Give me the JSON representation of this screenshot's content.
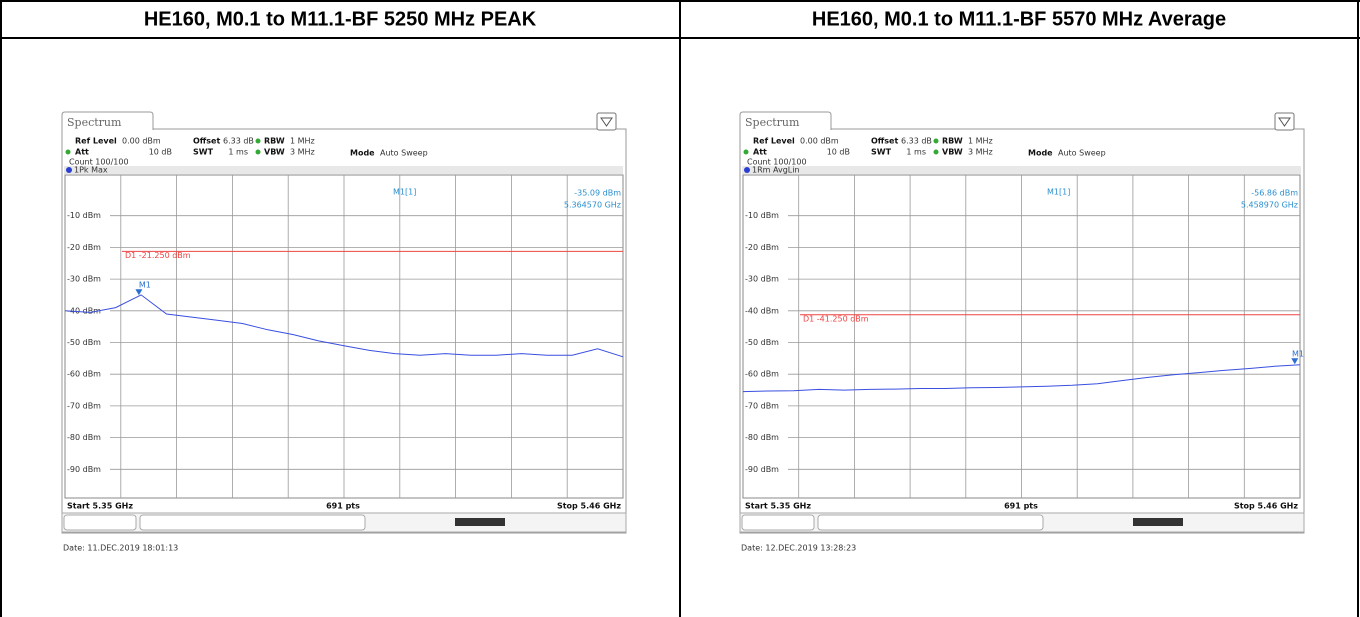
{
  "table": {
    "headers": [
      "HE160, M0.1 to M11.1-BF 5250 MHz PEAK",
      "HE160, M0.1 to M11.1-BF 5570 MHz Average"
    ]
  },
  "panels": [
    {
      "tab": "Spectrum",
      "ref_level_label": "Ref Level",
      "ref_level": "0.00 dBm",
      "offset_label": "Offset",
      "offset": "6.33 dB",
      "rbw_label": "RBW",
      "rbw": "1 MHz",
      "att_label": "Att",
      "att": "10 dB",
      "swt_label": "SWT",
      "swt": "1 ms",
      "vbw_label": "VBW",
      "vbw": "3 MHz",
      "mode_label": "Mode",
      "mode": "Auto Sweep",
      "count": "Count 100/100",
      "trace_label": "1Pk Max",
      "marker": {
        "name": "M1[1]",
        "tag": "M1",
        "x": 5.36457,
        "y": -35.09,
        "level_label": "-35.09 dBm",
        "freq_label": "5.364570 GHz"
      },
      "display_line": {
        "value": -21.25,
        "label": "D1 -21.250 dBm"
      },
      "start": "Start 5.35 GHz",
      "pts": "691 pts",
      "stop": "Stop 5.46 GHz",
      "date": "Date: 11.DEC.2019  18:01:13",
      "xlim": [
        5.35,
        5.46
      ],
      "ylim": [
        -100,
        0
      ],
      "yticks": [
        {
          "value": -10,
          "label": "-10 dBm"
        },
        {
          "value": -20,
          "label": "-20 dBm"
        },
        {
          "value": -30,
          "label": "-30 dBm"
        },
        {
          "value": -40,
          "label": "-40 dBm"
        },
        {
          "value": -50,
          "label": "-50 dBm"
        },
        {
          "value": -60,
          "label": "-60 dBm"
        },
        {
          "value": -70,
          "label": "-70 dBm"
        },
        {
          "value": -80,
          "label": "-80 dBm"
        },
        {
          "value": -90,
          "label": "-90 dBm"
        }
      ],
      "trace": {
        "color": "#3a4fe0",
        "x": [
          5.35,
          5.355,
          5.36,
          5.365,
          5.37,
          5.375,
          5.38,
          5.385,
          5.39,
          5.395,
          5.4,
          5.405,
          5.41,
          5.415,
          5.42,
          5.425,
          5.43,
          5.435,
          5.44,
          5.445,
          5.45,
          5.455,
          5.46
        ],
        "y": [
          -40,
          -40.5,
          -39,
          -35,
          -41,
          -42,
          -43,
          -44,
          -46,
          -47.5,
          -49.5,
          -51,
          -52.5,
          -53.5,
          -54,
          -53.5,
          -54,
          -54,
          -53.5,
          -54,
          -54,
          -52,
          -54.5
        ]
      }
    },
    {
      "tab": "Spectrum",
      "ref_level_label": "Ref Level",
      "ref_level": "0.00 dBm",
      "offset_label": "Offset",
      "offset": "6.33 dB",
      "rbw_label": "RBW",
      "rbw": "1 MHz",
      "att_label": "Att",
      "att": "10 dB",
      "swt_label": "SWT",
      "swt": "1 ms",
      "vbw_label": "VBW",
      "vbw": "3 MHz",
      "mode_label": "Mode",
      "mode": "Auto Sweep",
      "count": "Count 100/100",
      "trace_label": "1Rm AvgLin",
      "marker": {
        "name": "M1[1]",
        "tag": "M1",
        "x": 5.45897,
        "y": -56.86,
        "level_label": "-56.86 dBm",
        "freq_label": "5.458970 GHz"
      },
      "display_line": {
        "value": -41.25,
        "label": "D1 -41.250 dBm"
      },
      "start": "Start 5.35 GHz",
      "pts": "691 pts",
      "stop": "Stop 5.46 GHz",
      "date": "Date: 12.DEC.2019  13:28:23",
      "xlim": [
        5.35,
        5.46
      ],
      "ylim": [
        -100,
        0
      ],
      "yticks": [
        {
          "value": -10,
          "label": "-10 dBm"
        },
        {
          "value": -20,
          "label": "-20 dBm"
        },
        {
          "value": -30,
          "label": "-30 dBm"
        },
        {
          "value": -40,
          "label": "-40 dBm"
        },
        {
          "value": -50,
          "label": "-50 dBm"
        },
        {
          "value": -60,
          "label": "-60 dBm"
        },
        {
          "value": -70,
          "label": "-70 dBm"
        },
        {
          "value": -80,
          "label": "-80 dBm"
        },
        {
          "value": -90,
          "label": "-90 dBm"
        }
      ],
      "trace": {
        "color": "#3a4fe0",
        "x": [
          5.35,
          5.355,
          5.36,
          5.365,
          5.37,
          5.375,
          5.38,
          5.385,
          5.39,
          5.395,
          5.4,
          5.405,
          5.41,
          5.415,
          5.42,
          5.425,
          5.43,
          5.435,
          5.44,
          5.445,
          5.45,
          5.455,
          5.46
        ],
        "y": [
          -65.5,
          -65.3,
          -65.2,
          -64.8,
          -65,
          -64.8,
          -64.7,
          -64.5,
          -64.5,
          -64.3,
          -64.2,
          -64,
          -63.8,
          -63.5,
          -63,
          -62,
          -61,
          -60.2,
          -59.5,
          -58.8,
          -58.2,
          -57.5,
          -57
        ]
      }
    }
  ]
}
